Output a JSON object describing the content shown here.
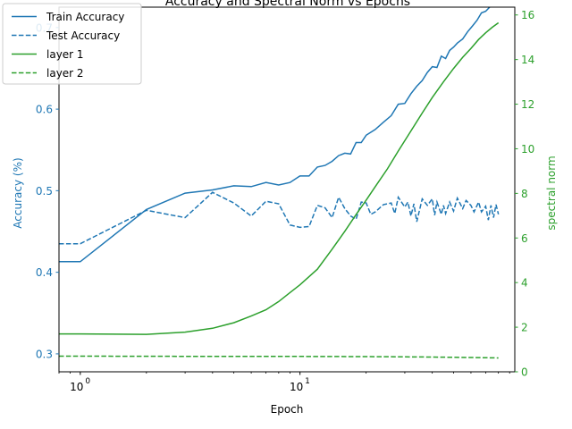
{
  "chart_data": {
    "type": "line",
    "title": "Accuracy and Spectral Norm vs Epochs",
    "xlabel": "Epoch",
    "ylabel_left": "Accuracy (%)",
    "ylabel_right": "spectral norm",
    "x_scale": "log",
    "xlim": [
      0.8,
      95
    ],
    "ylim_left": [
      0.278,
      0.725
    ],
    "ylim_right": [
      0,
      16.35
    ],
    "x_ticks": [
      {
        "value": 1,
        "base": "10",
        "exp": "0"
      },
      {
        "value": 10,
        "base": "10",
        "exp": "1"
      }
    ],
    "y_left_ticks": [
      {
        "value": 0.3,
        "label": "0.3"
      },
      {
        "value": 0.4,
        "label": "0.4"
      },
      {
        "value": 0.5,
        "label": "0.5"
      },
      {
        "value": 0.6,
        "label": "0.6"
      },
      {
        "value": 0.7,
        "label": "0.7"
      }
    ],
    "y_right_ticks": [
      {
        "value": 0,
        "label": "0"
      },
      {
        "value": 2,
        "label": "2"
      },
      {
        "value": 4,
        "label": "4"
      },
      {
        "value": 6,
        "label": "6"
      },
      {
        "value": 8,
        "label": "8"
      },
      {
        "value": 10,
        "label": "10"
      },
      {
        "value": 12,
        "label": "12"
      },
      {
        "value": 14,
        "label": "14"
      },
      {
        "value": 16,
        "label": "16"
      }
    ],
    "grid": false,
    "legend_position": "top-left",
    "colors": {
      "left_axis": "#1f77b4",
      "right_axis": "#2ca02c"
    },
    "series": [
      {
        "name": "Train Accuracy",
        "axis": "left",
        "color": "#1f77b4",
        "dash": "solid",
        "x": [
          0.8,
          1,
          2,
          3,
          4,
          5,
          6,
          7,
          8,
          9,
          10,
          11,
          12,
          13,
          14,
          15,
          16,
          17,
          18,
          19,
          20,
          22,
          24,
          26,
          28,
          30,
          32,
          34,
          36,
          38,
          40,
          42,
          44,
          46,
          48,
          50,
          52,
          55,
          58,
          61,
          64,
          67,
          70,
          73,
          76,
          80
        ],
        "y": [
          0.413,
          0.413,
          0.477,
          0.497,
          0.501,
          0.506,
          0.505,
          0.51,
          0.507,
          0.51,
          0.518,
          0.518,
          0.529,
          0.531,
          0.536,
          0.543,
          0.546,
          0.545,
          0.559,
          0.559,
          0.568,
          0.575,
          0.584,
          0.592,
          0.606,
          0.607,
          0.619,
          0.628,
          0.635,
          0.645,
          0.652,
          0.651,
          0.665,
          0.662,
          0.672,
          0.676,
          0.681,
          0.686,
          0.695,
          0.702,
          0.709,
          0.718,
          0.72,
          0.725,
          0.73,
          0.733
        ]
      },
      {
        "name": "Test Accuracy",
        "axis": "left",
        "color": "#1f77b4",
        "dash": "dashed",
        "x": [
          0.8,
          1,
          2,
          3,
          4,
          5,
          6,
          7,
          8,
          9,
          10,
          11,
          12,
          13,
          14,
          15,
          16,
          17,
          18,
          19,
          20,
          21,
          22,
          24,
          26,
          27,
          28,
          30,
          31,
          32,
          33,
          34,
          36,
          38,
          40,
          41,
          42,
          44,
          45,
          46,
          48,
          50,
          52,
          55,
          57,
          60,
          62,
          65,
          67,
          70,
          72,
          74,
          76,
          78,
          80
        ],
        "y": [
          0.435,
          0.435,
          0.476,
          0.467,
          0.498,
          0.485,
          0.469,
          0.487,
          0.484,
          0.458,
          0.455,
          0.456,
          0.482,
          0.479,
          0.467,
          0.492,
          0.478,
          0.469,
          0.465,
          0.486,
          0.485,
          0.471,
          0.474,
          0.483,
          0.485,
          0.472,
          0.492,
          0.48,
          0.486,
          0.469,
          0.484,
          0.462,
          0.49,
          0.482,
          0.49,
          0.47,
          0.486,
          0.471,
          0.482,
          0.472,
          0.486,
          0.475,
          0.491,
          0.478,
          0.488,
          0.482,
          0.474,
          0.486,
          0.474,
          0.481,
          0.464,
          0.482,
          0.467,
          0.483,
          0.471
        ]
      },
      {
        "name": "layer 1",
        "axis": "right",
        "color": "#2ca02c",
        "dash": "solid",
        "x": [
          0.8,
          1,
          2,
          3,
          4,
          5,
          6,
          7,
          8,
          9,
          10,
          12,
          14,
          16,
          18,
          20,
          22,
          25,
          28,
          32,
          36,
          40,
          45,
          50,
          55,
          60,
          65,
          70,
          75,
          80
        ],
        "y": [
          1.7,
          1.7,
          1.68,
          1.78,
          1.95,
          2.2,
          2.5,
          2.78,
          3.15,
          3.55,
          3.9,
          4.6,
          5.5,
          6.3,
          7.05,
          7.7,
          8.3,
          9.1,
          9.9,
          10.8,
          11.6,
          12.3,
          13.0,
          13.6,
          14.1,
          14.5,
          14.9,
          15.2,
          15.45,
          15.65
        ]
      },
      {
        "name": "layer 2",
        "axis": "right",
        "color": "#2ca02c",
        "dash": "dashed",
        "x": [
          0.8,
          1,
          5,
          10,
          20,
          40,
          60,
          80
        ],
        "y": [
          0.7,
          0.7,
          0.69,
          0.69,
          0.68,
          0.66,
          0.64,
          0.62
        ]
      }
    ]
  }
}
